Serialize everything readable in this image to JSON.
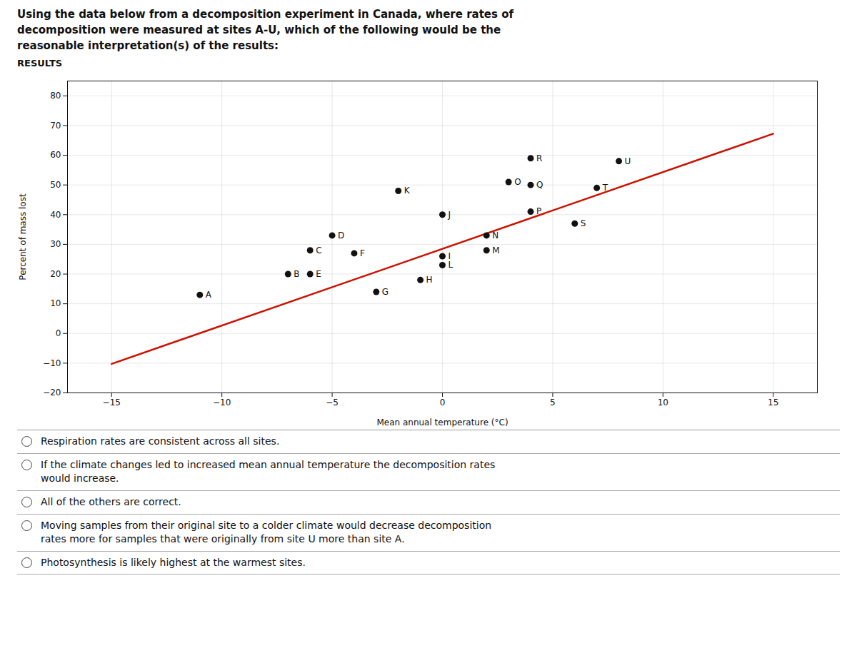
{
  "chart_data": {
    "type": "scatter",
    "title": "Using the data below from a decomposition experiment in Canada, where rates of\ndecomposition were measured at sites A-U, which of the following would be the\nreasonable interpretation(s) of the results:",
    "subtitle": "RESULTS",
    "xlabel": "Mean annual temperature (°C)",
    "ylabel": "Percent of mass lost",
    "xlim": [
      -17,
      17
    ],
    "ylim": [
      -20,
      85
    ],
    "xticks": [
      -15,
      -10,
      -5,
      0,
      5,
      10,
      15
    ],
    "yticks": [
      -20,
      -10,
      0,
      10,
      20,
      30,
      40,
      50,
      60,
      70,
      80
    ],
    "grid": true,
    "x": [
      -11,
      -7,
      -6,
      -6,
      -5,
      -4,
      -3,
      -1,
      0,
      0,
      0,
      -2,
      2,
      2,
      3,
      4,
      4,
      6,
      4,
      7,
      8
    ],
    "values": [
      13,
      20,
      20,
      28,
      33,
      27,
      14,
      18,
      26,
      23,
      40,
      48,
      28,
      33,
      51,
      50,
      41,
      37,
      59,
      49,
      58
    ],
    "labels": [
      "A",
      "B",
      "E",
      "C",
      "D",
      "F",
      "G",
      "H",
      "I",
      "L",
      "J",
      "K",
      "M",
      "N",
      "O",
      "Q",
      "P",
      "S",
      "R",
      "T",
      "U"
    ],
    "color": "#111111",
    "trendline": {
      "type": "line",
      "x": [
        -15,
        15
      ],
      "values": [
        -10.245,
        67.245
      ],
      "color": "#cc1100"
    },
    "annotations": [
      "Respiration rates are consistent across all sites.",
      "If the climate changes led to increased mean annual temperature the decomposition rates\nwould increase.",
      "All of the others are correct.",
      "Moving samples from their original site to a colder climate would decrease decomposition\nrates more for samples that were originally from site U more than site A.",
      "Photosynthesis is likely highest at the warmest sites."
    ]
  }
}
